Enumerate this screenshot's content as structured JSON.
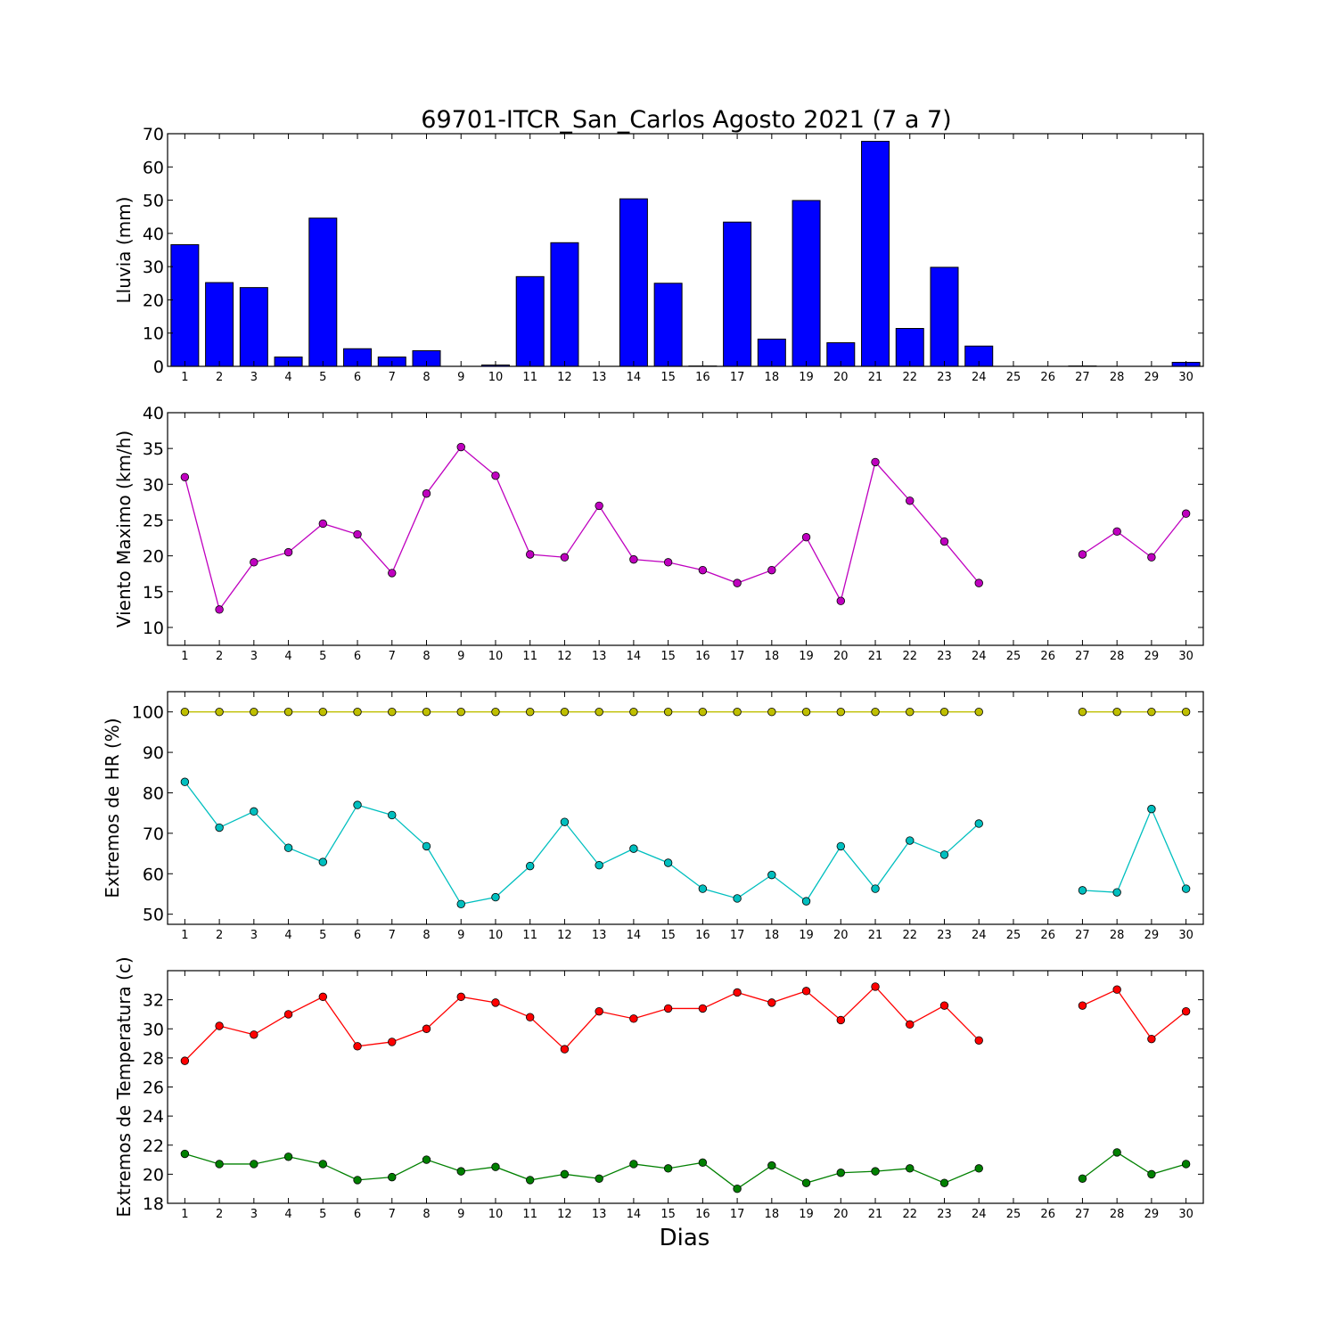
{
  "title": "69701-ITCR_San_Carlos Agosto 2021  (7 a 7)",
  "xlabel": "Dias",
  "chart_data": [
    {
      "id": "rain",
      "type": "bar",
      "ylabel": "Lluvia (mm)",
      "xlim": [
        0.5,
        30.5
      ],
      "ylim": [
        0,
        70
      ],
      "yticks": [
        0,
        10,
        20,
        30,
        40,
        50,
        60,
        70
      ],
      "x": [
        1,
        2,
        3,
        4,
        5,
        6,
        7,
        8,
        9,
        10,
        11,
        12,
        13,
        14,
        15,
        16,
        17,
        18,
        19,
        20,
        21,
        22,
        23,
        24,
        25,
        26,
        27,
        28,
        29,
        30
      ],
      "series": [
        {
          "color": "#0000ff",
          "values": [
            36.6,
            25.2,
            23.7,
            2.8,
            44.6,
            5.3,
            2.8,
            4.7,
            0,
            0.4,
            27.0,
            37.2,
            0,
            50.4,
            25.0,
            0.1,
            43.4,
            8.2,
            49.9,
            7.1,
            67.7,
            11.4,
            29.8,
            6.1,
            0,
            0,
            0.1,
            0,
            0,
            1.2
          ]
        }
      ]
    },
    {
      "id": "wind",
      "type": "line",
      "ylabel": "Viento Maximo (km/h)",
      "xlim": [
        0.5,
        30.5
      ],
      "ylim": [
        7.5,
        40
      ],
      "yticks": [
        10,
        15,
        20,
        25,
        30,
        35,
        40
      ],
      "x": [
        1,
        2,
        3,
        4,
        5,
        6,
        7,
        8,
        9,
        10,
        11,
        12,
        13,
        14,
        15,
        16,
        17,
        18,
        19,
        20,
        21,
        22,
        23,
        24,
        25,
        26,
        27,
        28,
        29,
        30
      ],
      "series": [
        {
          "color": "#bf00bf",
          "values": [
            31.0,
            12.5,
            19.1,
            20.5,
            24.5,
            23.0,
            17.6,
            28.7,
            35.2,
            31.2,
            20.2,
            19.8,
            27.0,
            19.5,
            19.1,
            18.0,
            16.2,
            18.0,
            22.6,
            13.7,
            33.1,
            27.7,
            22.0,
            16.2,
            null,
            null,
            20.2,
            23.4,
            19.8,
            25.9
          ]
        }
      ]
    },
    {
      "id": "humidity",
      "type": "line",
      "ylabel": "Extremos de HR (%)",
      "xlim": [
        0.5,
        30.5
      ],
      "ylim": [
        47.5,
        105
      ],
      "yticks": [
        50,
        60,
        70,
        80,
        90,
        100
      ],
      "x": [
        1,
        2,
        3,
        4,
        5,
        6,
        7,
        8,
        9,
        10,
        11,
        12,
        13,
        14,
        15,
        16,
        17,
        18,
        19,
        20,
        21,
        22,
        23,
        24,
        25,
        26,
        27,
        28,
        29,
        30
      ],
      "series": [
        {
          "color": "#bfbf00",
          "values": [
            100,
            100,
            100,
            100,
            100,
            100,
            100,
            100,
            100,
            100,
            100,
            100,
            100,
            100,
            100,
            100,
            100,
            100,
            100,
            100,
            100,
            100,
            100,
            100,
            null,
            null,
            100,
            100,
            100,
            100
          ]
        },
        {
          "color": "#00bfbf",
          "values": [
            82.7,
            71.4,
            75.4,
            66.4,
            62.9,
            77.0,
            74.5,
            66.8,
            52.5,
            54.2,
            61.9,
            72.8,
            62.1,
            66.2,
            62.7,
            56.3,
            53.9,
            59.7,
            53.2,
            66.8,
            56.3,
            68.2,
            64.7,
            72.4,
            null,
            null,
            55.9,
            55.4,
            76.0,
            56.3
          ]
        }
      ]
    },
    {
      "id": "temperature",
      "type": "line",
      "ylabel": "Extremos de Temperatura (c)",
      "xlim": [
        0.5,
        30.5
      ],
      "ylim": [
        18,
        34
      ],
      "yticks": [
        18,
        20,
        22,
        24,
        26,
        28,
        30,
        32
      ],
      "x": [
        1,
        2,
        3,
        4,
        5,
        6,
        7,
        8,
        9,
        10,
        11,
        12,
        13,
        14,
        15,
        16,
        17,
        18,
        19,
        20,
        21,
        22,
        23,
        24,
        25,
        26,
        27,
        28,
        29,
        30
      ],
      "series": [
        {
          "color": "#ff0000",
          "values": [
            27.8,
            30.2,
            29.6,
            31.0,
            32.2,
            28.8,
            29.1,
            30.0,
            32.2,
            31.8,
            30.8,
            28.6,
            31.2,
            30.7,
            31.4,
            31.4,
            32.5,
            31.8,
            32.6,
            30.6,
            32.9,
            30.3,
            31.6,
            29.2,
            null,
            null,
            31.6,
            32.7,
            29.3,
            31.2
          ]
        },
        {
          "color": "#008000",
          "values": [
            21.4,
            20.7,
            20.7,
            21.2,
            20.7,
            19.6,
            19.8,
            21.0,
            20.2,
            20.5,
            19.6,
            20.0,
            19.7,
            20.7,
            20.4,
            20.8,
            19.0,
            20.6,
            19.4,
            20.1,
            20.2,
            20.4,
            19.4,
            20.4,
            null,
            null,
            19.7,
            21.5,
            20.0,
            20.7
          ]
        }
      ]
    }
  ]
}
